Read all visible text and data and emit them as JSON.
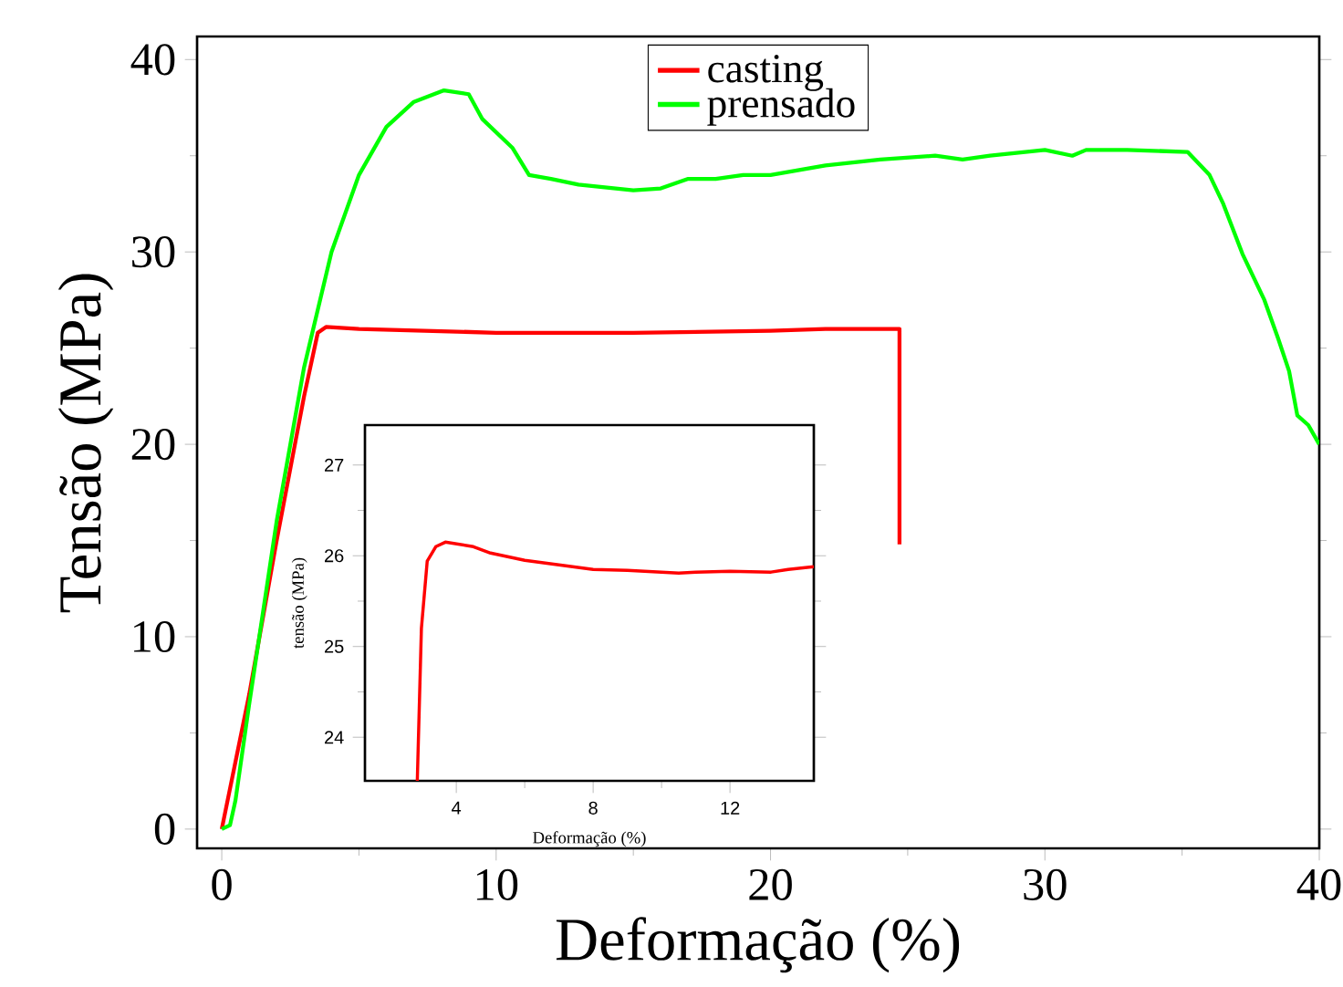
{
  "chart_data": [
    {
      "type": "line",
      "xlabel": "Deformação (%)",
      "ylabel": "Tensão (MPa)",
      "xlim": [
        -0.9,
        40
      ],
      "ylim": [
        -1,
        41.2
      ],
      "xticks": [
        0,
        10,
        20,
        30,
        40
      ],
      "yticks": [
        0,
        10,
        20,
        30,
        40
      ],
      "legend": "top",
      "grid": false,
      "line_style": "solid",
      "series": [
        {
          "name": "casting",
          "color": "#ff0000",
          "x": [
            0,
            0.3,
            0.6,
            1,
            2,
            3,
            3.5,
            3.8,
            5,
            10,
            15,
            20,
            22,
            24.7,
            24.7
          ],
          "values": [
            0,
            null,
            null,
            7,
            15,
            22.5,
            25.8,
            26.1,
            26,
            25.8,
            25.8,
            25.9,
            26,
            26,
            14.8
          ]
        },
        {
          "name": "prensado",
          "color": "#00ff00",
          "x": [
            0,
            0.3,
            0.5,
            1,
            2,
            3,
            4,
            5,
            6,
            7,
            8.1,
            9,
            9.5,
            10.6,
            11.2,
            12,
            13,
            15,
            16,
            17,
            18,
            19,
            20,
            22,
            24,
            26,
            27,
            28,
            30,
            31,
            31.5,
            33,
            35.2,
            36,
            36.5,
            37.2,
            38,
            38.5,
            38.9,
            39.2,
            39.6,
            40
          ],
          "values": [
            0,
            0.2,
            1.5,
            6.5,
            16,
            24,
            30,
            34,
            36.5,
            37.8,
            38.4,
            38.2,
            36.9,
            35.4,
            34,
            33.8,
            33.5,
            33.2,
            33.3,
            33.8,
            33.8,
            34,
            34,
            34.5,
            34.8,
            35,
            34.8,
            35,
            35.3,
            35,
            35.3,
            35.3,
            35.2,
            34,
            32.5,
            29.9,
            27.5,
            25.5,
            23.8,
            21.5,
            21,
            20
          ]
        }
      ]
    },
    {
      "type": "line",
      "xlabel": "Deformação (%)",
      "ylabel": "tensão (MPa)",
      "xlim": [
        1.33,
        14.45
      ],
      "ylim": [
        23.52,
        27.44
      ],
      "xticks": [
        4,
        8,
        12
      ],
      "yticks": [
        24,
        25,
        26,
        27
      ],
      "legend": false,
      "grid": false,
      "line_style": "solid",
      "series": [
        {
          "color": "#ff0000",
          "x": [
            2.86,
            2.98,
            3.15,
            3.4,
            3.68,
            4.5,
            5,
            6,
            7,
            8,
            9,
            10,
            10.5,
            11,
            12,
            13.2,
            13.7,
            14.45
          ],
          "values": [
            23.52,
            25.2,
            25.94,
            26.1,
            26.15,
            26.1,
            26.03,
            25.95,
            25.9,
            25.85,
            25.84,
            25.82,
            25.81,
            25.82,
            25.83,
            25.82,
            25.85,
            25.88
          ]
        }
      ]
    }
  ]
}
